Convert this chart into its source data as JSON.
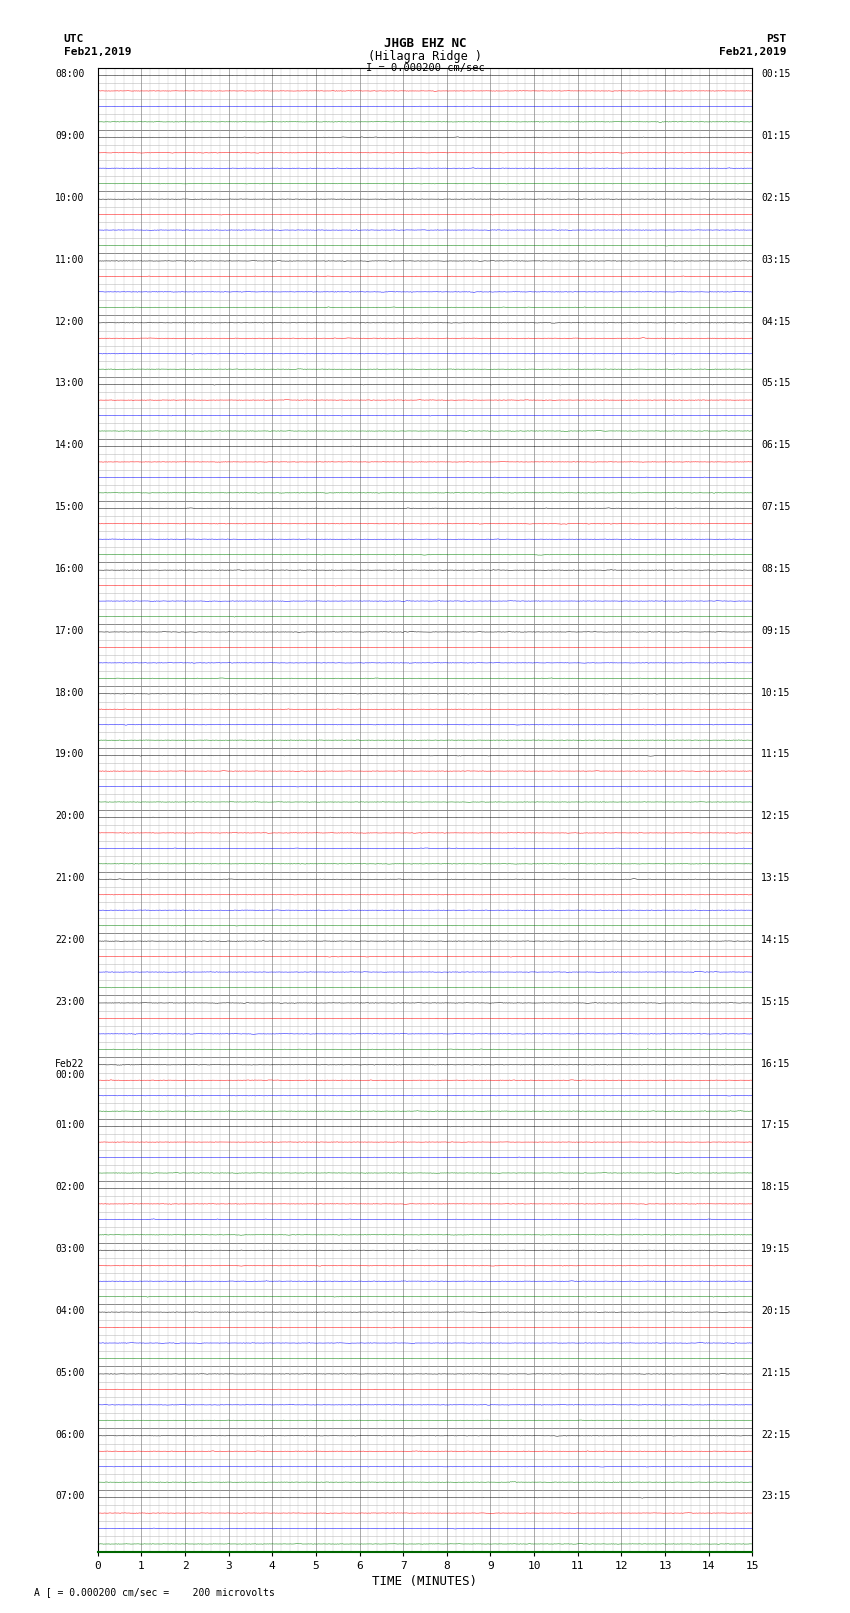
{
  "title_line1": "JHGB EHZ NC",
  "title_line2": "(Hilagra Ridge )",
  "title_scale": "I = 0.000200 cm/sec",
  "utc_label": "UTC",
  "utc_date": "Feb21,2019",
  "pst_label": "PST",
  "pst_date": "Feb21,2019",
  "xlabel": "TIME (MINUTES)",
  "footer": "A [ = 0.000200 cm/sec =    200 microvolts",
  "num_hours": 24,
  "traces_per_hour": 4,
  "minutes_per_row": 15,
  "x_ticks": [
    0,
    1,
    2,
    3,
    4,
    5,
    6,
    7,
    8,
    9,
    10,
    11,
    12,
    13,
    14,
    15
  ],
  "left_times_utc": [
    "08:00",
    "09:00",
    "10:00",
    "11:00",
    "12:00",
    "13:00",
    "14:00",
    "15:00",
    "16:00",
    "17:00",
    "18:00",
    "19:00",
    "20:00",
    "21:00",
    "22:00",
    "23:00",
    "Feb22\n00:00",
    "01:00",
    "02:00",
    "03:00",
    "04:00",
    "05:00",
    "06:00",
    "07:00"
  ],
  "right_times_pst": [
    "00:15",
    "01:15",
    "02:15",
    "03:15",
    "04:15",
    "05:15",
    "06:15",
    "07:15",
    "08:15",
    "09:15",
    "10:15",
    "11:15",
    "12:15",
    "13:15",
    "14:15",
    "15:15",
    "16:15",
    "17:15",
    "18:15",
    "19:15",
    "20:15",
    "21:15",
    "22:15",
    "23:15"
  ],
  "bg_color": "white",
  "row_colors": [
    "#000000",
    "#ff0000",
    "#0000ff",
    "#008000"
  ],
  "grid_color": "#888888",
  "minor_grid_color": "#bbbbbb",
  "noise_base": 0.008,
  "spike_amplitude": 0.025,
  "seed": 12345
}
